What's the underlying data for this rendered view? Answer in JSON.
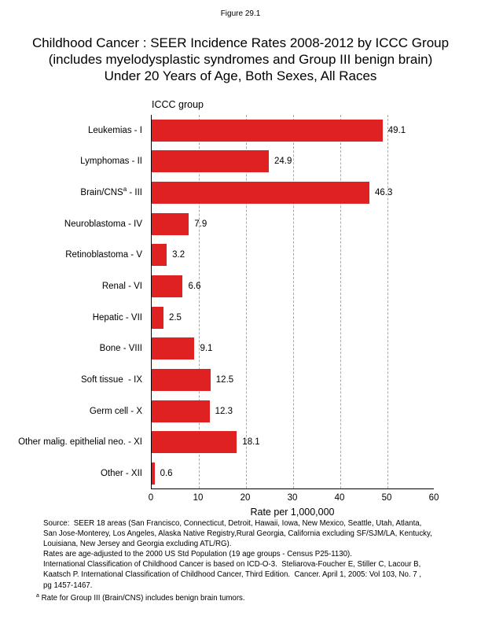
{
  "figure_label": "Figure 29.1",
  "title_lines": [
    "Childhood Cancer : SEER Incidence Rates 2008-2012 by ICCC Group",
    "(includes myelodysplastic syndromes and Group III benign brain)",
    "Under 20 Years of Age, Both Sexes, All Races"
  ],
  "chart_data": {
    "type": "bar",
    "orientation": "horizontal",
    "title": "Childhood Cancer : SEER Incidence Rates 2008-2012 by ICCC Group (includes myelodysplastic syndromes and Group III benign brain) Under 20 Years of Age, Both Sexes, All Races",
    "group_axis_title": "ICCC group",
    "xlabel": "Rate per 1,000,000",
    "xlim": [
      0,
      60
    ],
    "xticks": [
      0,
      10,
      20,
      30,
      40,
      50,
      60
    ],
    "gridlines_at": [
      10,
      20,
      30,
      40,
      50
    ],
    "grid_style": "vertical-dashed",
    "bar_color": "#e02121",
    "categories": [
      {
        "pre": "Leukemias - I"
      },
      {
        "pre": "Lymphomas - II"
      },
      {
        "pre": "Brain/CNS",
        "sup": "a",
        "post": " - III"
      },
      {
        "pre": "Neuroblastoma - IV"
      },
      {
        "pre": "Retinoblastoma - V"
      },
      {
        "pre": "Renal - VI"
      },
      {
        "pre": "Hepatic - VII"
      },
      {
        "pre": "Bone - VIII"
      },
      {
        "pre": "Soft tissue  - IX"
      },
      {
        "pre": "Germ cell - X"
      },
      {
        "pre": "Other malig. epithelial neo. - XI"
      },
      {
        "pre": "Other - XII"
      }
    ],
    "values": [
      49.1,
      24.9,
      46.3,
      7.9,
      3.2,
      6.6,
      2.5,
      9.1,
      12.5,
      12.3,
      18.1,
      0.6
    ],
    "value_labels": [
      "49.1",
      "24.9",
      "46.3",
      "7.9",
      "3.2",
      "6.6",
      "2.5",
      "9.1",
      "12.5",
      "12.3",
      "18.1",
      "0.6"
    ]
  },
  "footer": {
    "lines": [
      "Source:  SEER 18 areas (San Francisco, Connecticut, Detroit, Hawaii, Iowa, New Mexico, Seattle, Utah, Atlanta,",
      "San Jose-Monterey, Los Angeles, Alaska Native Registry,Rural Georgia, California excluding SF/SJM/LA, Kentucky,",
      "Louisiana, New Jersey and Georgia excluding ATL/RG).",
      "Rates are age-adjusted to the 2000 US Std Population (19 age groups - Census P25-1130).",
      "International Classification of Childhood Cancer is based on ICD-O-3.  Steliarova-Foucher E, Stiller C, Lacour B,",
      "Kaatsch P. International Classification of Childhood Cancer, Third Edition.  Cancer. April 1, 2005: Vol 103, No. 7 ,",
      "pg 1457-1467."
    ],
    "footnote_marker": "a",
    "footnote_text": "Rate for Group III (Brain/CNS) includes benign brain tumors."
  }
}
